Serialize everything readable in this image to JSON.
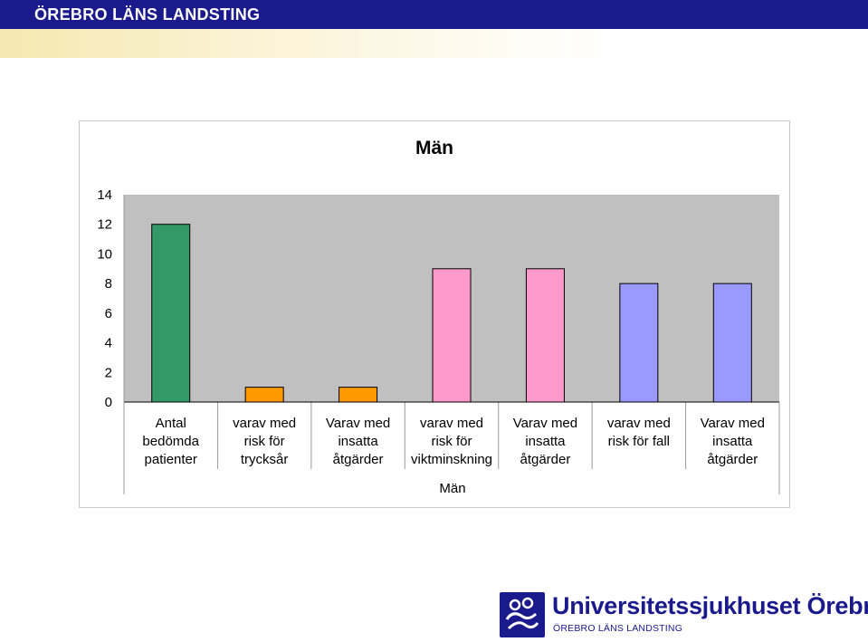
{
  "header": {
    "title": "ÖREBRO LÄNS LANDSTING",
    "colors": {
      "bar": "#1a1a8c"
    }
  },
  "chart_data": {
    "type": "bar",
    "title": "Män",
    "xlabel": "Män",
    "ylabel": "",
    "ylim": [
      0,
      14
    ],
    "yticks": [
      0,
      2,
      4,
      6,
      8,
      10,
      12,
      14
    ],
    "grid": false,
    "plot_background": "#c0c0c0",
    "categories": [
      [
        "Antal",
        "bedömda",
        "patienter"
      ],
      [
        "varav med",
        "risk för",
        "trycksår"
      ],
      [
        "Varav med",
        "insatta",
        "åtgärder"
      ],
      [
        "varav med",
        "risk för",
        "viktminskning"
      ],
      [
        "Varav med",
        "insatta",
        "åtgärder"
      ],
      [
        "varav med",
        "risk för fall"
      ],
      [
        "Varav med",
        "insatta",
        "åtgärder"
      ]
    ],
    "values": [
      12,
      1,
      1,
      9,
      9,
      8,
      8
    ],
    "colors": [
      "#339966",
      "#ff9900",
      "#ff9900",
      "#ff99cc",
      "#ff99cc",
      "#9999ff",
      "#9999ff"
    ]
  },
  "logo": {
    "name": "Universitetssjukhuset Örebro",
    "subtitle": "ÖREBRO LÄNS LANDSTING",
    "icon": "hospital-logo-icon",
    "color": "#1a1a8c"
  }
}
